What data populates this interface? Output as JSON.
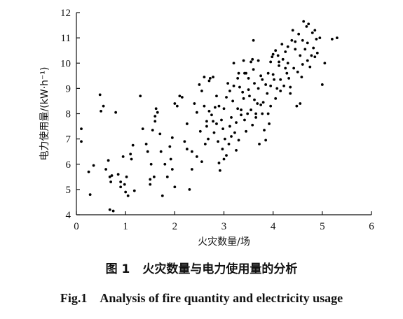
{
  "chart_data": {
    "type": "scatter",
    "title": "",
    "xlabel": "火灾数量/场",
    "ylabel": "电力使用量/(kW·h⁻¹)",
    "xlim": [
      0,
      6
    ],
    "ylim": [
      4,
      12
    ],
    "x_ticks": [
      "0",
      "1",
      "2",
      "3",
      "4",
      "5",
      "6"
    ],
    "y_ticks": [
      "4",
      "5",
      "6",
      "7",
      "8",
      "9",
      "10",
      "11",
      "12"
    ],
    "grid": false,
    "points": [
      [
        0.1,
        7.4
      ],
      [
        0.1,
        6.9
      ],
      [
        0.25,
        5.7
      ],
      [
        0.28,
        4.8
      ],
      [
        0.35,
        5.95
      ],
      [
        0.48,
        8.75
      ],
      [
        0.5,
        8.1
      ],
      [
        0.55,
        8.3
      ],
      [
        0.6,
        5.8
      ],
      [
        0.65,
        6.15
      ],
      [
        0.68,
        5.5
      ],
      [
        0.7,
        5.3
      ],
      [
        0.68,
        4.2
      ],
      [
        0.75,
        4.15
      ],
      [
        0.8,
        8.05
      ],
      [
        0.85,
        5.6
      ],
      [
        0.9,
        5.3
      ],
      [
        0.95,
        6.3
      ],
      [
        0.98,
        5.2
      ],
      [
        1.0,
        4.9
      ],
      [
        1.02,
        5.5
      ],
      [
        1.05,
        4.75
      ],
      [
        1.1,
        6.4
      ],
      [
        1.12,
        6.2
      ],
      [
        1.15,
        6.75
      ],
      [
        1.18,
        4.95
      ],
      [
        1.3,
        8.7
      ],
      [
        1.35,
        7.4
      ],
      [
        1.45,
        6.5
      ],
      [
        1.5,
        5.4
      ],
      [
        1.52,
        6.0
      ],
      [
        1.5,
        5.2
      ],
      [
        1.55,
        7.35
      ],
      [
        1.6,
        7.7
      ],
      [
        1.6,
        7.9
      ],
      [
        1.62,
        8.2
      ],
      [
        1.65,
        8.05
      ],
      [
        1.7,
        7.2
      ],
      [
        1.72,
        6.5
      ],
      [
        1.75,
        4.75
      ],
      [
        1.8,
        6.0
      ],
      [
        1.85,
        5.5
      ],
      [
        1.9,
        6.7
      ],
      [
        1.92,
        6.2
      ],
      [
        1.95,
        7.05
      ],
      [
        2.0,
        8.4
      ],
      [
        2.0,
        5.1
      ],
      [
        2.05,
        8.3
      ],
      [
        2.1,
        8.7
      ],
      [
        2.15,
        8.65
      ],
      [
        2.2,
        6.9
      ],
      [
        2.25,
        7.6
      ],
      [
        2.3,
        5.0
      ],
      [
        2.35,
        6.5
      ],
      [
        2.4,
        8.4
      ],
      [
        2.45,
        8.05
      ],
      [
        2.5,
        9.15
      ],
      [
        2.55,
        6.1
      ],
      [
        2.6,
        9.45
      ],
      [
        2.62,
        6.8
      ],
      [
        2.65,
        7.5
      ],
      [
        2.68,
        7.0
      ],
      [
        2.7,
        8.1
      ],
      [
        2.72,
        9.4
      ],
      [
        2.75,
        7.95
      ],
      [
        2.78,
        9.45
      ],
      [
        2.8,
        7.25
      ],
      [
        2.82,
        8.25
      ],
      [
        2.85,
        7.6
      ],
      [
        2.88,
        6.9
      ],
      [
        2.9,
        6.05
      ],
      [
        2.92,
        5.75
      ],
      [
        2.95,
        7.75
      ],
      [
        2.97,
        6.6
      ],
      [
        3.0,
        6.2
      ],
      [
        3.0,
        8.2
      ],
      [
        3.02,
        7.0
      ],
      [
        3.05,
        6.35
      ],
      [
        3.08,
        9.2
      ],
      [
        3.1,
        6.8
      ],
      [
        3.12,
        8.9
      ],
      [
        3.15,
        7.85
      ],
      [
        3.18,
        8.5
      ],
      [
        3.2,
        9.1
      ],
      [
        3.22,
        7.25
      ],
      [
        3.25,
        6.55
      ],
      [
        3.28,
        8.2
      ],
      [
        3.3,
        9.6
      ],
      [
        3.32,
        9.05
      ],
      [
        3.35,
        7.95
      ],
      [
        3.38,
        8.85
      ],
      [
        3.4,
        10.1
      ],
      [
        3.4,
        8.6
      ],
      [
        3.42,
        9.6
      ],
      [
        3.45,
        7.3
      ],
      [
        3.48,
        8.0
      ],
      [
        3.5,
        9.4
      ],
      [
        3.52,
        8.7
      ],
      [
        3.55,
        8.15
      ],
      [
        3.58,
        7.55
      ],
      [
        3.6,
        10.9
      ],
      [
        3.6,
        9.75
      ],
      [
        3.62,
        9.2
      ],
      [
        3.65,
        7.85
      ],
      [
        3.68,
        8.4
      ],
      [
        3.7,
        9.0
      ],
      [
        3.72,
        6.8
      ],
      [
        3.75,
        9.5
      ],
      [
        3.78,
        8.0
      ],
      [
        3.8,
        8.45
      ],
      [
        3.82,
        7.35
      ],
      [
        3.85,
        9.15
      ],
      [
        3.88,
        8.8
      ],
      [
        3.9,
        9.6
      ],
      [
        3.92,
        7.6
      ],
      [
        3.95,
        10.05
      ],
      [
        3.98,
        10.25
      ],
      [
        4.0,
        9.55
      ],
      [
        4.02,
        9.35
      ],
      [
        4.05,
        10.5
      ],
      [
        4.08,
        9.0
      ],
      [
        4.1,
        10.3
      ],
      [
        4.12,
        9.9
      ],
      [
        4.15,
        9.35
      ],
      [
        4.18,
        10.75
      ],
      [
        4.2,
        10.15
      ],
      [
        4.22,
        9.1
      ],
      [
        4.25,
        10.45
      ],
      [
        4.28,
        9.6
      ],
      [
        4.3,
        10.0
      ],
      [
        4.32,
        9.4
      ],
      [
        4.35,
        8.8
      ],
      [
        4.38,
        10.9
      ],
      [
        4.4,
        11.3
      ],
      [
        4.42,
        9.8
      ],
      [
        4.45,
        10.55
      ],
      [
        4.48,
        8.3
      ],
      [
        4.5,
        9.65
      ],
      [
        4.52,
        11.15
      ],
      [
        4.55,
        10.3
      ],
      [
        4.58,
        9.45
      ],
      [
        4.6,
        10.9
      ],
      [
        4.62,
        11.65
      ],
      [
        4.65,
        10.55
      ],
      [
        4.68,
        11.45
      ],
      [
        4.7,
        10.8
      ],
      [
        4.72,
        11.55
      ],
      [
        4.75,
        9.85
      ],
      [
        4.78,
        10.3
      ],
      [
        4.8,
        11.2
      ],
      [
        4.82,
        10.6
      ],
      [
        4.85,
        11.3
      ],
      [
        4.88,
        10.95
      ],
      [
        4.9,
        10.4
      ],
      [
        4.95,
        11.0
      ],
      [
        5.0,
        9.15
      ],
      [
        5.05,
        10.0
      ],
      [
        5.2,
        10.95
      ],
      [
        5.3,
        11.0
      ],
      [
        3.45,
        9.6
      ],
      [
        3.55,
        10.05
      ],
      [
        3.65,
        8.0
      ],
      [
        3.75,
        8.35
      ],
      [
        3.35,
        8.15
      ],
      [
        3.25,
        7.65
      ],
      [
        2.98,
        7.4
      ],
      [
        3.15,
        7.1
      ],
      [
        2.6,
        8.3
      ],
      [
        2.45,
        6.3
      ],
      [
        2.35,
        5.8
      ],
      [
        2.25,
        6.6
      ],
      [
        1.95,
        5.8
      ],
      [
        1.58,
        5.5
      ],
      [
        1.42,
        6.8
      ],
      [
        0.9,
        5.1
      ],
      [
        0.72,
        5.55
      ],
      [
        3.85,
        6.95
      ],
      [
        4.05,
        8.6
      ],
      [
        4.15,
        8.9
      ],
      [
        4.35,
        9.05
      ],
      [
        4.55,
        8.4
      ],
      [
        4.25,
        9.8
      ],
      [
        3.95,
        9.1
      ],
      [
        3.7,
        10.1
      ],
      [
        3.58,
        10.15
      ],
      [
        3.28,
        9.4
      ],
      [
        3.05,
        8.65
      ],
      [
        2.85,
        8.7
      ],
      [
        2.7,
        9.3
      ],
      [
        2.52,
        7.3
      ],
      [
        3.62,
        8.55
      ],
      [
        3.5,
        8.95
      ],
      [
        3.12,
        7.5
      ],
      [
        4.7,
        10.1
      ],
      [
        4.85,
        10.25
      ],
      [
        4.6,
        9.95
      ],
      [
        4.45,
        10.85
      ],
      [
        4.3,
        10.65
      ],
      [
        4.12,
        10.05
      ],
      [
        3.9,
        8.0
      ],
      [
        3.78,
        9.35
      ],
      [
        3.42,
        7.75
      ],
      [
        3.3,
        6.95
      ],
      [
        2.78,
        7.7
      ],
      [
        2.9,
        8.3
      ],
      [
        2.55,
        8.9
      ],
      [
        2.65,
        7.7
      ],
      [
        3.2,
        10.0
      ],
      [
        3.95,
        8.3
      ],
      [
        4.0,
        10.35
      ]
    ]
  },
  "caption": {
    "cn_label": "图 1",
    "cn_title": "火灾数量与电力使用量的分析",
    "en_label": "Fig.1",
    "en_title": "Analysis of fire quantity and electricity usage"
  }
}
